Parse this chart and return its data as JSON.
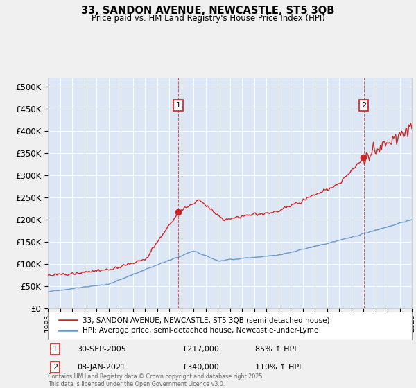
{
  "title1": "33, SANDON AVENUE, NEWCASTLE, ST5 3QB",
  "title2": "Price paid vs. HM Land Registry's House Price Index (HPI)",
  "legend_line1": "33, SANDON AVENUE, NEWCASTLE, ST5 3QB (semi-detached house)",
  "legend_line2": "HPI: Average price, semi-detached house, Newcastle-under-Lyme",
  "annotation1": {
    "label": "1",
    "date": "30-SEP-2005",
    "price": "£217,000",
    "hpi": "85% ↑ HPI",
    "year": 2005.75,
    "value": 217000
  },
  "annotation2": {
    "label": "2",
    "date": "08-JAN-2021",
    "price": "£340,000",
    "hpi": "110% ↑ HPI",
    "year": 2021.03,
    "value": 340000
  },
  "footnote": "Contains HM Land Registry data © Crown copyright and database right 2025.\nThis data is licensed under the Open Government Licence v3.0.",
  "bg_color": "#f0f0f0",
  "plot_bg_color": "#dce6f4",
  "red_color": "#cc2222",
  "blue_color": "#6699cc",
  "grid_color": "#ffffff",
  "ylim": [
    0,
    520000
  ],
  "yticks": [
    0,
    50000,
    100000,
    150000,
    200000,
    250000,
    300000,
    350000,
    400000,
    450000,
    500000
  ],
  "x_start_year": 1995,
  "x_end_year": 2025
}
